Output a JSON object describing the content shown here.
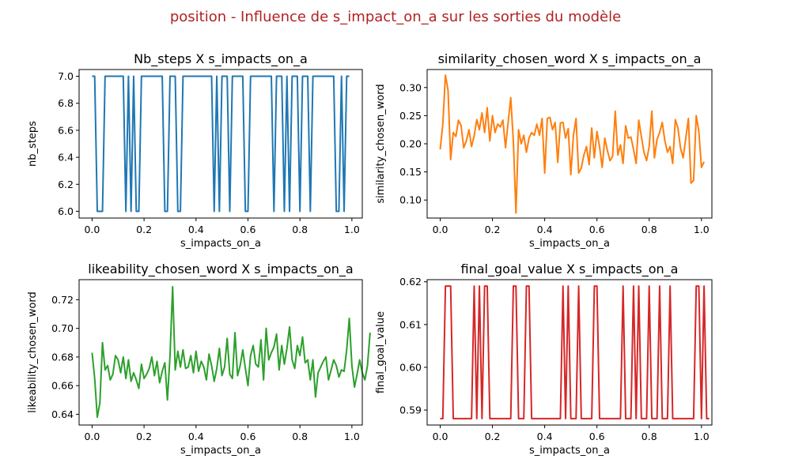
{
  "figure": {
    "suptitle": "position - Influence de s_impact_on_a sur les sorties du modèle",
    "suptitle_color": "#b22222"
  },
  "chart_data": [
    {
      "type": "line",
      "title": "Nb_steps X s_impacts_on_a",
      "xlabel": "s_impacts_on_a",
      "ylabel": "nb_steps",
      "color": "#1f77b4",
      "xlim": [
        -0.05,
        1.04
      ],
      "ylim": [
        5.95,
        7.05
      ],
      "xticks": [
        0.0,
        0.2,
        0.4,
        0.6,
        0.8,
        1.0
      ],
      "xtick_labels": [
        "0.0",
        "0.2",
        "0.4",
        "0.6",
        "0.8",
        "1.0"
      ],
      "yticks": [
        6.0,
        6.2,
        6.4,
        6.6,
        6.8,
        7.0
      ],
      "ytick_labels": [
        "6.0",
        "6.2",
        "6.4",
        "6.6",
        "6.8",
        "7.0"
      ],
      "x_start": 0.0,
      "x_step": 0.01,
      "y": [
        7,
        7,
        6,
        6,
        6,
        7,
        7,
        7,
        7,
        7,
        7,
        7,
        7,
        6,
        7,
        6,
        7,
        6,
        6,
        7,
        7,
        7,
        7,
        7,
        7,
        7,
        7,
        7,
        6,
        6,
        7,
        7,
        7,
        6,
        6,
        7,
        7,
        7,
        7,
        7,
        7,
        7,
        7,
        7,
        7,
        7,
        7,
        6,
        7,
        6,
        7,
        7,
        7,
        6,
        7,
        7,
        7,
        7,
        7,
        6,
        6,
        7,
        7,
        7,
        7,
        7,
        7,
        7,
        7,
        7,
        6,
        7,
        7,
        7,
        6,
        7,
        6,
        7,
        7,
        7,
        6,
        7,
        7,
        7,
        6,
        7,
        7,
        7,
        7,
        7,
        7,
        7,
        7,
        7,
        6,
        6,
        7,
        6,
        7,
        7
      ]
    },
    {
      "type": "line",
      "title": "similarity_chosen_word X s_impacts_on_a",
      "xlabel": "s_impacts_on_a",
      "ylabel": "similarity_chosen_word",
      "color": "#ff7f0e",
      "xlim": [
        -0.05,
        1.04
      ],
      "ylim": [
        0.068,
        0.332
      ],
      "xticks": [
        0.0,
        0.2,
        0.4,
        0.6,
        0.8,
        1.0
      ],
      "xtick_labels": [
        "0.0",
        "0.2",
        "0.4",
        "0.6",
        "0.8",
        "1.0"
      ],
      "yticks": [
        0.1,
        0.15,
        0.2,
        0.25,
        0.3
      ],
      "ytick_labels": [
        "0.10",
        "0.15",
        "0.20",
        "0.25",
        "0.30"
      ],
      "x_start": 0.0,
      "x_step": 0.01,
      "y": [
        0.19,
        0.235,
        0.322,
        0.295,
        0.172,
        0.22,
        0.213,
        0.242,
        0.232,
        0.193,
        0.205,
        0.225,
        0.195,
        0.214,
        0.243,
        0.225,
        0.255,
        0.22,
        0.264,
        0.205,
        0.25,
        0.22,
        0.235,
        0.23,
        0.242,
        0.193,
        0.238,
        0.282,
        0.205,
        0.077,
        0.225,
        0.2,
        0.215,
        0.185,
        0.21,
        0.22,
        0.215,
        0.235,
        0.215,
        0.245,
        0.148,
        0.245,
        0.247,
        0.225,
        0.238,
        0.167,
        0.237,
        0.238,
        0.21,
        0.227,
        0.145,
        0.215,
        0.245,
        0.148,
        0.157,
        0.18,
        0.195,
        0.163,
        0.228,
        0.175,
        0.222,
        0.195,
        0.158,
        0.21,
        0.188,
        0.17,
        0.178,
        0.258,
        0.18,
        0.198,
        0.165,
        0.232,
        0.21,
        0.212,
        0.19,
        0.165,
        0.242,
        0.213,
        0.185,
        0.17,
        0.195,
        0.258,
        0.175,
        0.208,
        0.22,
        0.238,
        0.205,
        0.185,
        0.195,
        0.165,
        0.243,
        0.228,
        0.192,
        0.175,
        0.21,
        0.245,
        0.13,
        0.135,
        0.25,
        0.222,
        0.158,
        0.168
      ]
    },
    {
      "type": "line",
      "title": "likeability_chosen_word X s_impacts_on_a",
      "xlabel": "s_impacts_on_a",
      "ylabel": "likeability_chosen_word",
      "color": "#2ca02c",
      "xlim": [
        -0.05,
        1.04
      ],
      "ylim": [
        0.6325,
        0.734
      ],
      "xticks": [
        0.0,
        0.2,
        0.4,
        0.6,
        0.8,
        1.0
      ],
      "xtick_labels": [
        "0.0",
        "0.2",
        "0.4",
        "0.6",
        "0.8",
        "1.0"
      ],
      "yticks": [
        0.64,
        0.66,
        0.68,
        0.7,
        0.72
      ],
      "ytick_labels": [
        "0.64",
        "0.66",
        "0.68",
        "0.70",
        "0.72"
      ],
      "x_start": 0.0,
      "x_step": 0.01,
      "y": [
        0.683,
        0.665,
        0.638,
        0.648,
        0.69,
        0.671,
        0.674,
        0.664,
        0.668,
        0.681,
        0.678,
        0.669,
        0.68,
        0.665,
        0.678,
        0.663,
        0.669,
        0.664,
        0.658,
        0.675,
        0.665,
        0.668,
        0.672,
        0.68,
        0.667,
        0.677,
        0.662,
        0.67,
        0.676,
        0.65,
        0.681,
        0.729,
        0.671,
        0.684,
        0.673,
        0.685,
        0.672,
        0.673,
        0.681,
        0.669,
        0.684,
        0.67,
        0.677,
        0.673,
        0.664,
        0.682,
        0.674,
        0.663,
        0.672,
        0.686,
        0.667,
        0.673,
        0.693,
        0.668,
        0.665,
        0.697,
        0.667,
        0.674,
        0.685,
        0.672,
        0.66,
        0.681,
        0.688,
        0.675,
        0.673,
        0.692,
        0.664,
        0.7,
        0.678,
        0.683,
        0.687,
        0.696,
        0.671,
        0.688,
        0.675,
        0.686,
        0.701,
        0.678,
        0.672,
        0.688,
        0.681,
        0.694,
        0.676,
        0.678,
        0.664,
        0.678,
        0.652,
        0.669,
        0.673,
        0.677,
        0.68,
        0.664,
        0.671,
        0.678,
        0.674,
        0.666,
        0.671,
        0.67,
        0.685,
        0.707,
        0.674,
        0.659,
        0.668,
        0.678,
        0.669,
        0.664,
        0.674,
        0.697
      ]
    },
    {
      "type": "line",
      "title": "final_goal_value X s_impacts_on_a",
      "xlabel": "s_impacts_on_a",
      "ylabel": "final_goal_value",
      "color": "#d62728",
      "xlim": [
        -0.05,
        1.04
      ],
      "ylim": [
        0.5865,
        0.6205
      ],
      "xticks": [
        0.0,
        0.2,
        0.4,
        0.6,
        0.8,
        1.0
      ],
      "xtick_labels": [
        "0.0",
        "0.2",
        "0.4",
        "0.6",
        "0.8",
        "1.0"
      ],
      "yticks": [
        0.59,
        0.6,
        0.61,
        0.62
      ],
      "ytick_labels": [
        "0.59",
        "0.60",
        "0.61",
        "0.62"
      ],
      "x_start": 0.0,
      "x_step": 0.01,
      "y": [
        0.588,
        0.588,
        0.619,
        0.619,
        0.619,
        0.588,
        0.588,
        0.588,
        0.588,
        0.588,
        0.588,
        0.588,
        0.588,
        0.619,
        0.588,
        0.619,
        0.588,
        0.619,
        0.619,
        0.588,
        0.588,
        0.588,
        0.588,
        0.588,
        0.588,
        0.588,
        0.588,
        0.588,
        0.619,
        0.619,
        0.588,
        0.588,
        0.588,
        0.619,
        0.619,
        0.588,
        0.588,
        0.588,
        0.588,
        0.588,
        0.588,
        0.588,
        0.588,
        0.588,
        0.588,
        0.588,
        0.588,
        0.619,
        0.588,
        0.619,
        0.588,
        0.588,
        0.588,
        0.619,
        0.588,
        0.588,
        0.588,
        0.588,
        0.588,
        0.619,
        0.619,
        0.588,
        0.588,
        0.588,
        0.588,
        0.588,
        0.588,
        0.588,
        0.588,
        0.588,
        0.619,
        0.588,
        0.588,
        0.588,
        0.619,
        0.588,
        0.619,
        0.588,
        0.588,
        0.588,
        0.619,
        0.588,
        0.588,
        0.588,
        0.619,
        0.588,
        0.588,
        0.588,
        0.619,
        0.588,
        0.588,
        0.588,
        0.588,
        0.588,
        0.588,
        0.588,
        0.588,
        0.588,
        0.619,
        0.619,
        0.588,
        0.619,
        0.588,
        0.588
      ]
    }
  ]
}
